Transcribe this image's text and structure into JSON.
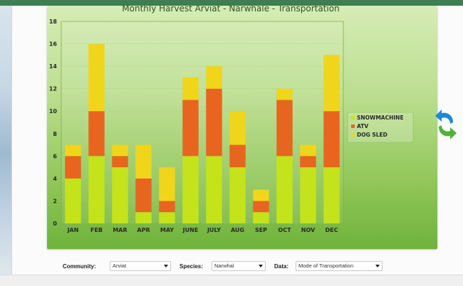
{
  "controls": {
    "community_label": "Community:",
    "community_value": "Arviat",
    "species_label": "Species:",
    "species_value": "Narwhal",
    "data_label": "Data:",
    "data_value": "Mode of Transportation"
  },
  "icons": {
    "refresh": "refresh-arrows-icon"
  },
  "colors": {
    "snowmachine": "#c5e31a",
    "atv": "#e8651f",
    "dog_sled": "#f0d51a",
    "refresh_blue": "#1f88d4",
    "refresh_green": "#4fb535"
  },
  "chart_data": {
    "type": "bar",
    "stacked": true,
    "title": "Monthly Harvest Arviat - Narwhale - Transportation",
    "categories": [
      "JAN",
      "FEB",
      "MAR",
      "APR",
      "MAY",
      "JUNE",
      "JULY",
      "AUG",
      "SEP",
      "OCT",
      "NOV",
      "DEC"
    ],
    "series": [
      {
        "name": "SNOWMACHINE",
        "values": [
          4,
          6,
          5,
          1,
          1,
          6,
          6,
          5,
          1,
          6,
          5,
          5
        ]
      },
      {
        "name": "ATV",
        "values": [
          2,
          4,
          1,
          3,
          1,
          5,
          6,
          2,
          1,
          5,
          1,
          5
        ]
      },
      {
        "name": "DOG SLED",
        "values": [
          1,
          6,
          1,
          3,
          3,
          2,
          2,
          3,
          1,
          1,
          1,
          5
        ]
      }
    ],
    "ylim": [
      0,
      18
    ],
    "yticks": [
      "0",
      "2",
      "4",
      "6",
      "8",
      "10",
      "12",
      "14",
      "16",
      "18"
    ],
    "grid": true,
    "legend_position": "right"
  }
}
